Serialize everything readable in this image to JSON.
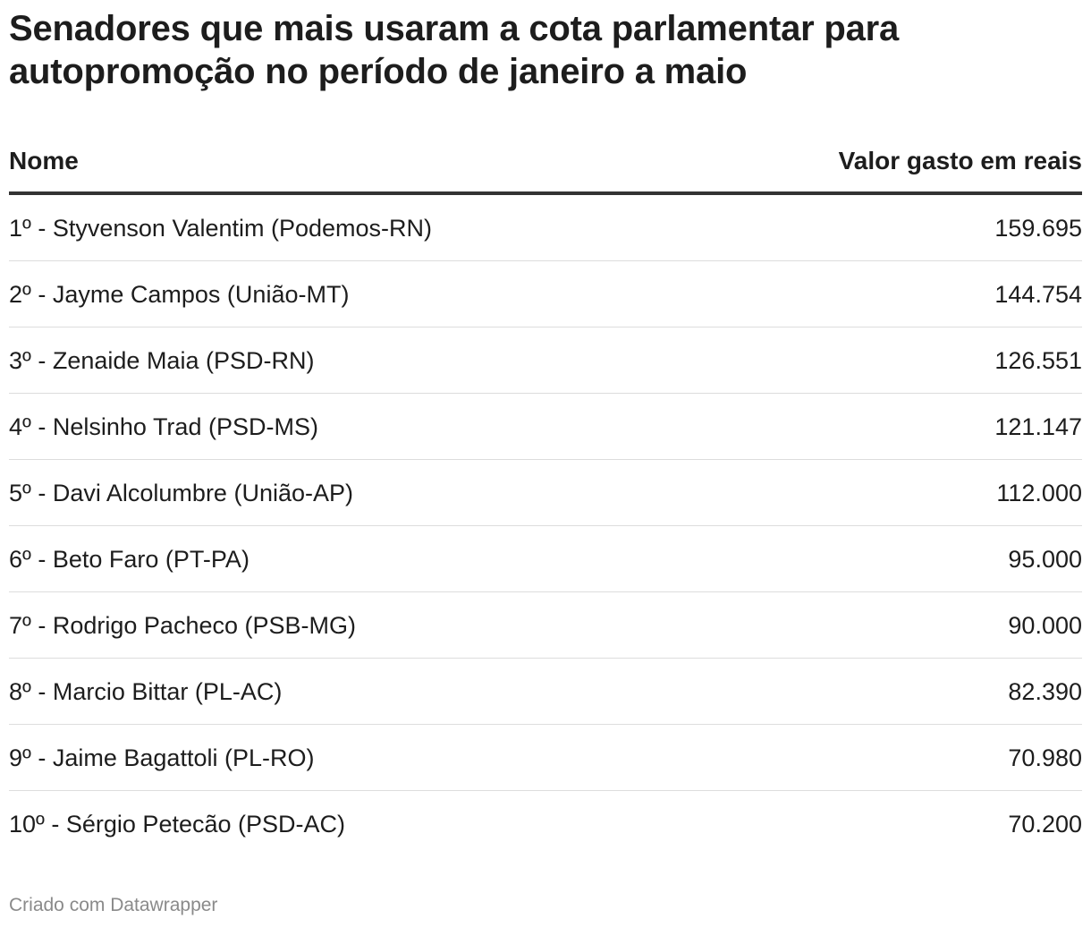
{
  "title": "Senadores que mais usaram a cota parlamentar para autopromoção no período de janeiro a maio",
  "footer": "Criado com Datawrapper",
  "chart_data": {
    "type": "table",
    "title": "Senadores que mais usaram a cota parlamentar para autopromoção no período de janeiro a maio",
    "columns": [
      "Nome",
      "Valor gasto em reais"
    ],
    "rows": [
      {
        "nome": "1º - Styvenson Valentim (Podemos-RN)",
        "valor": "159.695"
      },
      {
        "nome": "2º - Jayme Campos (União-MT)",
        "valor": "144.754"
      },
      {
        "nome": "3º - Zenaide Maia (PSD-RN)",
        "valor": "126.551"
      },
      {
        "nome": "4º - Nelsinho Trad (PSD-MS)",
        "valor": "121.147"
      },
      {
        "nome": "5º - Davi Alcolumbre (União-AP)",
        "valor": "112.000"
      },
      {
        "nome": "6º - Beto Faro (PT-PA)",
        "valor": "95.000"
      },
      {
        "nome": "7º - Rodrigo Pacheco (PSB-MG)",
        "valor": "90.000"
      },
      {
        "nome": "8º - Marcio Bittar (PL-AC)",
        "valor": "82.390"
      },
      {
        "nome": "9º - Jaime Bagattoli (PL-RO)",
        "valor": "70.980"
      },
      {
        "nome": "10º - Sérgio Petecão (PSD-AC)",
        "valor": "70.200"
      }
    ],
    "values": [
      159695,
      144754,
      126551,
      121147,
      112000,
      95000,
      90000,
      82390,
      70980,
      70200
    ]
  }
}
